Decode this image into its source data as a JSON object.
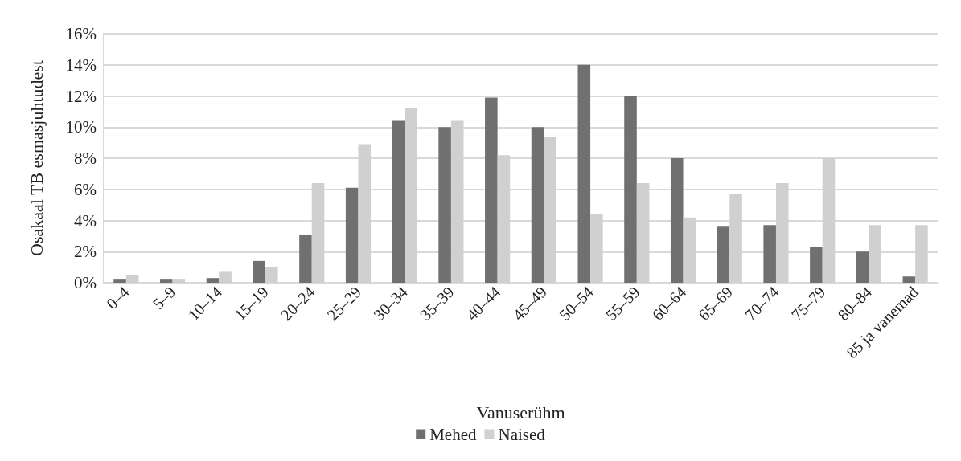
{
  "chart_data": {
    "type": "bar",
    "xlabel": "Vanuserühm",
    "ylabel": "Osakaal TB esmasjuhtudest",
    "categories": [
      "0–4",
      "5–9",
      "10–14",
      "15–19",
      "20–24",
      "25–29",
      "30–34",
      "35–39",
      "40–44",
      "45–49",
      "50–54",
      "55–59",
      "60–64",
      "65–69",
      "70–74",
      "75–79",
      "80–84",
      "85 ja vanemad"
    ],
    "series": [
      {
        "name": "Mehed",
        "color": "#707070",
        "values": [
          0.2,
          0.2,
          0.3,
          1.4,
          3.1,
          6.1,
          10.4,
          10.0,
          11.9,
          10.0,
          14.0,
          12.0,
          8.0,
          3.6,
          3.7,
          2.3,
          2.0,
          0.4
        ]
      },
      {
        "name": "Naised",
        "color": "#d0d0d0",
        "values": [
          0.5,
          0.2,
          0.7,
          1.0,
          6.4,
          8.9,
          11.2,
          10.4,
          8.2,
          9.4,
          4.4,
          6.4,
          4.2,
          5.7,
          6.4,
          8.0,
          3.7,
          3.7
        ]
      }
    ],
    "ylim": [
      0,
      16
    ],
    "yticks": [
      {
        "value": 0,
        "label": "0%"
      },
      {
        "value": 2,
        "label": "2%"
      },
      {
        "value": 4,
        "label": "4%"
      },
      {
        "value": 6,
        "label": "6%"
      },
      {
        "value": 8,
        "label": "8%"
      },
      {
        "value": 10,
        "label": "10%"
      },
      {
        "value": 12,
        "label": "12%"
      },
      {
        "value": 14,
        "label": "14%"
      },
      {
        "value": 16,
        "label": "16%"
      }
    ],
    "grid": "y",
    "legend": "bottom"
  }
}
